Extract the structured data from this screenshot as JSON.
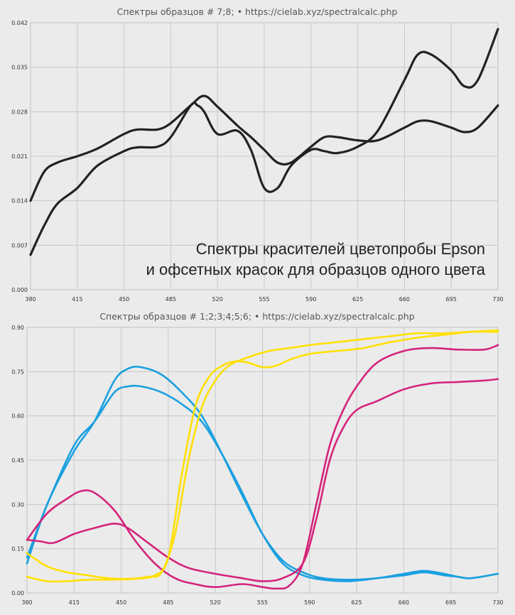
{
  "chart_data": [
    {
      "type": "line",
      "title": "Спектры образцов # 7;8;   •   https://cielab.xyz/spectralcalc.php",
      "annotation": [
        "Спектры красителей цветопробы Epson",
        "и офсетных красок для образцов одного цвета"
      ],
      "x_ticks": [
        "380",
        "415",
        "450",
        "485",
        "520",
        "555",
        "590",
        "625",
        "660",
        "695",
        "730"
      ],
      "y_ticks": [
        "0.000",
        "0.007",
        "0.014",
        "0.021",
        "0.028",
        "0.035",
        "0.042"
      ],
      "xlim": [
        380,
        730
      ],
      "ylim": [
        0,
        0.042
      ],
      "grid": true,
      "series": [
        {
          "color": "#222222",
          "x": [
            380,
            390,
            400,
            415,
            430,
            450,
            460,
            475,
            485,
            500,
            505,
            510,
            520,
            535,
            545,
            555,
            565,
            575,
            590,
            600,
            610,
            625,
            640,
            660,
            670,
            680,
            695,
            705,
            715,
            730
          ],
          "y": [
            0.0055,
            0.01,
            0.0135,
            0.016,
            0.0195,
            0.0218,
            0.0224,
            0.0225,
            0.024,
            0.029,
            0.029,
            0.028,
            0.0245,
            0.025,
            0.022,
            0.016,
            0.016,
            0.0195,
            0.022,
            0.0218,
            0.0215,
            0.0225,
            0.025,
            0.033,
            0.037,
            0.037,
            0.0345,
            0.032,
            0.033,
            0.041
          ]
        },
        {
          "color": "#222222",
          "x": [
            380,
            390,
            400,
            415,
            430,
            450,
            460,
            475,
            485,
            500,
            510,
            520,
            535,
            545,
            555,
            565,
            575,
            590,
            600,
            610,
            625,
            640,
            660,
            670,
            680,
            695,
            705,
            715,
            730
          ],
          "y": [
            0.014,
            0.0185,
            0.02,
            0.021,
            0.0222,
            0.0245,
            0.0252,
            0.0252,
            0.0262,
            0.029,
            0.0305,
            0.0288,
            0.0258,
            0.024,
            0.022,
            0.02,
            0.02,
            0.0225,
            0.024,
            0.024,
            0.0235,
            0.0235,
            0.0255,
            0.0265,
            0.0265,
            0.0255,
            0.0248,
            0.0255,
            0.029
          ]
        }
      ]
    },
    {
      "type": "line",
      "title": "Спектры образцов # 1;2;3;4;5;6;   •   https://cielab.xyz/spectralcalc.php",
      "x_ticks": [
        "380",
        "415",
        "450",
        "485",
        "520",
        "555",
        "590",
        "625",
        "660",
        "695",
        "730"
      ],
      "y_ticks": [
        "0.00",
        "0.15",
        "0.30",
        "0.45",
        "0.60",
        "0.75",
        "0.90"
      ],
      "xlim": [
        380,
        730
      ],
      "ylim": [
        0,
        0.9
      ],
      "grid": true,
      "series": [
        {
          "color": "#1aa0e0",
          "x": [
            380,
            395,
            415,
            430,
            445,
            455,
            465,
            480,
            495,
            510,
            525,
            540,
            555,
            570,
            585,
            600,
            620,
            640,
            660,
            675,
            690,
            700,
            710,
            730
          ],
          "y": [
            0.1,
            0.3,
            0.48,
            0.58,
            0.72,
            0.76,
            0.765,
            0.74,
            0.68,
            0.6,
            0.47,
            0.33,
            0.2,
            0.11,
            0.07,
            0.05,
            0.045,
            0.05,
            0.065,
            0.075,
            0.065,
            0.055,
            0.05,
            0.065
          ]
        },
        {
          "color": "#1aa0e0",
          "x": [
            380,
            395,
            415,
            430,
            445,
            455,
            465,
            480,
            495,
            510,
            525,
            540,
            555,
            570,
            585,
            600,
            620,
            640,
            660,
            675,
            690,
            700,
            710,
            730
          ],
          "y": [
            0.12,
            0.3,
            0.5,
            0.58,
            0.68,
            0.7,
            0.7,
            0.68,
            0.64,
            0.58,
            0.47,
            0.34,
            0.2,
            0.1,
            0.06,
            0.045,
            0.04,
            0.05,
            0.06,
            0.07,
            0.06,
            0.055,
            0.05,
            0.065
          ]
        },
        {
          "color": "#d4247a",
          "x": [
            380,
            395,
            410,
            420,
            430,
            445,
            460,
            475,
            490,
            505,
            520,
            540,
            555,
            565,
            575,
            585,
            595,
            605,
            615,
            625,
            640,
            660,
            680,
            700,
            720,
            730
          ],
          "y": [
            0.18,
            0.27,
            0.32,
            0.345,
            0.34,
            0.28,
            0.18,
            0.1,
            0.05,
            0.03,
            0.02,
            0.03,
            0.02,
            0.015,
            0.025,
            0.1,
            0.3,
            0.5,
            0.62,
            0.7,
            0.78,
            0.82,
            0.83,
            0.825,
            0.825,
            0.84
          ]
        },
        {
          "color": "#d4247a",
          "x": [
            380,
            390,
            400,
            415,
            430,
            445,
            455,
            470,
            485,
            500,
            520,
            540,
            555,
            570,
            585,
            595,
            605,
            615,
            625,
            640,
            660,
            680,
            700,
            720,
            730
          ],
          "y": [
            0.18,
            0.175,
            0.17,
            0.2,
            0.22,
            0.235,
            0.22,
            0.17,
            0.12,
            0.085,
            0.065,
            0.05,
            0.04,
            0.05,
            0.1,
            0.25,
            0.45,
            0.56,
            0.62,
            0.65,
            0.69,
            0.71,
            0.715,
            0.72,
            0.725
          ]
        },
        {
          "color": "#ffe000",
          "x": [
            380,
            395,
            410,
            425,
            440,
            460,
            475,
            485,
            495,
            505,
            515,
            525,
            535,
            545,
            555,
            565,
            575,
            590,
            610,
            630,
            650,
            670,
            690,
            710,
            730
          ],
          "y": [
            0.055,
            0.04,
            0.04,
            0.045,
            0.045,
            0.048,
            0.06,
            0.12,
            0.4,
            0.63,
            0.73,
            0.77,
            0.785,
            0.78,
            0.765,
            0.77,
            0.79,
            0.81,
            0.82,
            0.83,
            0.85,
            0.865,
            0.875,
            0.885,
            0.89
          ]
        },
        {
          "color": "#ffe000",
          "x": [
            380,
            395,
            410,
            425,
            440,
            455,
            470,
            480,
            490,
            500,
            510,
            520,
            530,
            545,
            560,
            575,
            590,
            610,
            630,
            650,
            670,
            690,
            710,
            730
          ],
          "y": [
            0.135,
            0.09,
            0.07,
            0.06,
            0.05,
            0.048,
            0.055,
            0.07,
            0.2,
            0.45,
            0.63,
            0.72,
            0.77,
            0.8,
            0.82,
            0.83,
            0.84,
            0.85,
            0.86,
            0.87,
            0.88,
            0.88,
            0.885,
            0.885
          ]
        }
      ]
    }
  ]
}
